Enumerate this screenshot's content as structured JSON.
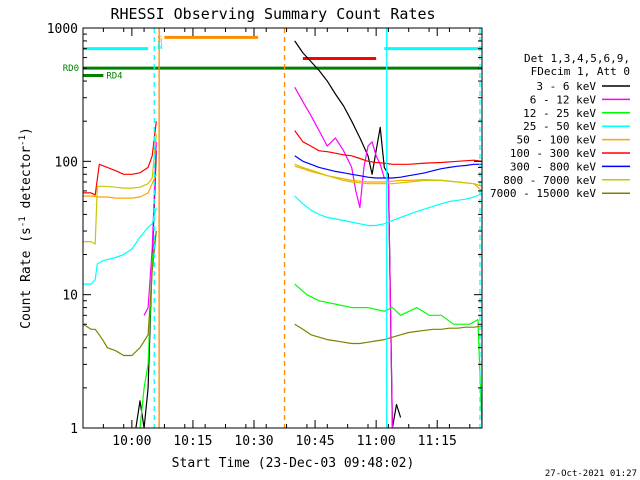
{
  "chart_data": {
    "type": "line",
    "title": "RHESSI Observing Summary Count Rates",
    "xlabel": "Start Time (23-Dec-03 09:48:02)",
    "ylabel_main": "Count Rate (s",
    "ylabel_sup1": "-1",
    "ylabel_mid": " detector",
    "ylabel_sup2": "-1",
    "ylabel_end": ")",
    "yscale": "log",
    "ylim": [
      1,
      1000
    ],
    "xlim_min": [
      0,
      98
    ],
    "xaxis_origin": "09:48:02",
    "xticks": [
      {
        "t": 12,
        "label": "10:00"
      },
      {
        "t": 27,
        "label": "10:15"
      },
      {
        "t": 42,
        "label": "10:30"
      },
      {
        "t": 57,
        "label": "10:45"
      },
      {
        "t": 72,
        "label": "11:00"
      },
      {
        "t": 87,
        "label": "11:15"
      }
    ],
    "yticks": [
      {
        "v": 1,
        "label": "1"
      },
      {
        "v": 10,
        "label": "10"
      },
      {
        "v": 100,
        "label": "100"
      },
      {
        "v": 1000,
        "label": "1000"
      }
    ],
    "legend_header": [
      "Det 1,3,4,5,6,9,",
      "FDecim 1, Att 0"
    ],
    "timestamp": "27-Oct-2021 01:27",
    "series": [
      {
        "name": "3 - 6 keV",
        "color": "#000000",
        "points": [
          [
            0,
            null
          ],
          [
            12,
            null
          ],
          [
            13,
            1
          ],
          [
            14,
            1.6
          ],
          [
            15,
            1
          ],
          [
            16,
            2
          ],
          [
            17,
            18
          ],
          [
            18,
            120
          ],
          [
            18.5,
            null
          ],
          [
            51,
            null
          ],
          [
            52,
            800
          ],
          [
            54,
            650
          ],
          [
            56,
            560
          ],
          [
            58,
            480
          ],
          [
            60,
            400
          ],
          [
            62,
            320
          ],
          [
            64,
            260
          ],
          [
            66,
            200
          ],
          [
            68,
            150
          ],
          [
            70,
            110
          ],
          [
            71,
            80
          ],
          [
            72,
            120
          ],
          [
            73,
            180
          ],
          [
            74,
            90
          ],
          [
            75,
            80
          ],
          [
            76,
            1
          ],
          [
            77,
            1.5
          ],
          [
            78,
            1.2
          ],
          [
            79,
            null
          ]
        ]
      },
      {
        "name": "6 - 12 keV",
        "color": "#ff00ff",
        "points": [
          [
            0,
            null
          ],
          [
            14,
            null
          ],
          [
            15,
            7
          ],
          [
            16,
            8
          ],
          [
            17,
            22
          ],
          [
            18,
            140
          ],
          [
            18.5,
            null
          ],
          [
            51,
            null
          ],
          [
            52,
            360
          ],
          [
            54,
            280
          ],
          [
            56,
            220
          ],
          [
            58,
            170
          ],
          [
            60,
            130
          ],
          [
            62,
            150
          ],
          [
            64,
            120
          ],
          [
            66,
            90
          ],
          [
            67,
            60
          ],
          [
            68,
            45
          ],
          [
            69,
            90
          ],
          [
            70,
            130
          ],
          [
            71,
            140
          ],
          [
            72,
            110
          ],
          [
            73,
            95
          ],
          [
            74,
            75
          ],
          [
            75,
            75
          ],
          [
            76,
            1
          ],
          [
            98,
            1
          ],
          [
            98.5,
            null
          ]
        ]
      },
      {
        "name": "12 - 25 keV",
        "color": "#00ff00",
        "points": [
          [
            0,
            null
          ],
          [
            5,
            null
          ],
          [
            5.2,
            1
          ],
          [
            6,
            1
          ],
          [
            7,
            1
          ],
          [
            8,
            1
          ],
          [
            9,
            1
          ],
          [
            12,
            1
          ],
          [
            14,
            1
          ],
          [
            15,
            2
          ],
          [
            16,
            3
          ],
          [
            17,
            18
          ],
          [
            18,
            30
          ],
          [
            18.5,
            null
          ],
          [
            51,
            null
          ],
          [
            52,
            12
          ],
          [
            55,
            10
          ],
          [
            58,
            9
          ],
          [
            62,
            8.5
          ],
          [
            66,
            8
          ],
          [
            70,
            8
          ],
          [
            74,
            7.5
          ],
          [
            76,
            8
          ],
          [
            78,
            7
          ],
          [
            82,
            8
          ],
          [
            85,
            7
          ],
          [
            88,
            7
          ],
          [
            91,
            6
          ],
          [
            95,
            6
          ],
          [
            97,
            6.5
          ],
          [
            98,
            1
          ]
        ]
      },
      {
        "name": "25 - 50 keV",
        "color": "#00ffff",
        "points": [
          [
            0,
            12
          ],
          [
            2,
            12
          ],
          [
            3,
            13
          ],
          [
            3.5,
            17
          ],
          [
            5,
            18
          ],
          [
            8,
            19
          ],
          [
            10,
            20
          ],
          [
            12,
            22
          ],
          [
            14,
            27
          ],
          [
            16,
            32
          ],
          [
            17,
            34
          ],
          [
            18,
            45
          ],
          [
            18.5,
            null
          ],
          [
            51,
            null
          ],
          [
            52,
            55
          ],
          [
            54,
            48
          ],
          [
            56,
            43
          ],
          [
            58,
            40
          ],
          [
            60,
            38
          ],
          [
            62,
            37
          ],
          [
            64,
            36
          ],
          [
            66,
            35
          ],
          [
            68,
            34
          ],
          [
            70,
            33
          ],
          [
            72,
            33
          ],
          [
            74,
            34
          ],
          [
            76,
            36
          ],
          [
            78,
            38
          ],
          [
            80,
            40
          ],
          [
            82,
            42
          ],
          [
            84,
            44
          ],
          [
            86,
            46
          ],
          [
            88,
            48
          ],
          [
            90,
            50
          ],
          [
            92,
            51
          ],
          [
            94,
            52
          ],
          [
            96,
            54
          ],
          [
            98,
            57
          ]
        ]
      },
      {
        "name": "50 - 100 keV",
        "color": "#ffa500",
        "points": [
          [
            0,
            55
          ],
          [
            2,
            55
          ],
          [
            4,
            54
          ],
          [
            6,
            54
          ],
          [
            8,
            53
          ],
          [
            10,
            53
          ],
          [
            12,
            53
          ],
          [
            14,
            54
          ],
          [
            16,
            58
          ],
          [
            18,
            80
          ],
          [
            18.5,
            null
          ],
          [
            51,
            null
          ],
          [
            52,
            92
          ],
          [
            54,
            88
          ],
          [
            56,
            84
          ],
          [
            58,
            81
          ],
          [
            60,
            78
          ],
          [
            62,
            76
          ],
          [
            64,
            74
          ],
          [
            66,
            72
          ],
          [
            68,
            71
          ],
          [
            70,
            70
          ],
          [
            72,
            70
          ],
          [
            74,
            70
          ],
          [
            76,
            71
          ],
          [
            78,
            72
          ],
          [
            80,
            72
          ],
          [
            84,
            73
          ],
          [
            88,
            72
          ],
          [
            92,
            70
          ],
          [
            96,
            68
          ],
          [
            98,
            60
          ]
        ]
      },
      {
        "name": "100 - 300 keV",
        "color": "#ff0000",
        "points": [
          [
            0,
            58
          ],
          [
            2,
            58
          ],
          [
            3,
            56
          ],
          [
            4,
            95
          ],
          [
            6,
            90
          ],
          [
            8,
            85
          ],
          [
            10,
            80
          ],
          [
            12,
            80
          ],
          [
            14,
            82
          ],
          [
            16,
            90
          ],
          [
            17,
            110
          ],
          [
            18,
            200
          ],
          [
            18.5,
            null
          ],
          [
            51,
            null
          ],
          [
            52,
            170
          ],
          [
            54,
            140
          ],
          [
            56,
            130
          ],
          [
            58,
            120
          ],
          [
            60,
            118
          ],
          [
            62,
            115
          ],
          [
            64,
            112
          ],
          [
            66,
            110
          ],
          [
            68,
            105
          ],
          [
            70,
            100
          ],
          [
            72,
            98
          ],
          [
            74,
            97
          ],
          [
            76,
            95
          ],
          [
            80,
            95
          ],
          [
            84,
            97
          ],
          [
            88,
            98
          ],
          [
            92,
            100
          ],
          [
            96,
            102
          ],
          [
            98,
            100
          ]
        ]
      },
      {
        "name": "300 - 800 keV",
        "color": "#0000ff",
        "points": [
          [
            51,
            null
          ],
          [
            52,
            110
          ],
          [
            54,
            100
          ],
          [
            56,
            95
          ],
          [
            58,
            90
          ],
          [
            60,
            87
          ],
          [
            62,
            84
          ],
          [
            64,
            82
          ],
          [
            66,
            80
          ],
          [
            68,
            78
          ],
          [
            70,
            76
          ],
          [
            72,
            75
          ],
          [
            74,
            75
          ],
          [
            76,
            75
          ],
          [
            78,
            76
          ],
          [
            80,
            78
          ],
          [
            82,
            80
          ],
          [
            84,
            82
          ],
          [
            86,
            85
          ],
          [
            88,
            88
          ],
          [
            90,
            90
          ],
          [
            92,
            92
          ],
          [
            94,
            93
          ],
          [
            96,
            95
          ],
          [
            98,
            95
          ]
        ]
      },
      {
        "name": "800 - 7000 keV",
        "color": "#c8c800",
        "points": [
          [
            0,
            25
          ],
          [
            2,
            25
          ],
          [
            3,
            24
          ],
          [
            3.5,
            65
          ],
          [
            5,
            65
          ],
          [
            8,
            64
          ],
          [
            10,
            63
          ],
          [
            12,
            63
          ],
          [
            14,
            64
          ],
          [
            16,
            68
          ],
          [
            17,
            75
          ],
          [
            18,
            160
          ],
          [
            18.5,
            null
          ],
          [
            51,
            null
          ],
          [
            52,
            95
          ],
          [
            54,
            90
          ],
          [
            56,
            86
          ],
          [
            58,
            82
          ],
          [
            60,
            78
          ],
          [
            62,
            75
          ],
          [
            64,
            72
          ],
          [
            66,
            70
          ],
          [
            68,
            69
          ],
          [
            70,
            68
          ],
          [
            72,
            68
          ],
          [
            74,
            68
          ],
          [
            76,
            68
          ],
          [
            80,
            70
          ],
          [
            84,
            72
          ],
          [
            88,
            72
          ],
          [
            92,
            70
          ],
          [
            96,
            68
          ],
          [
            98,
            65
          ]
        ]
      },
      {
        "name": "7000 - 15000 keV",
        "color": "#808000",
        "points": [
          [
            0,
            6
          ],
          [
            2,
            5.5
          ],
          [
            3,
            5.5
          ],
          [
            4,
            5
          ],
          [
            5,
            4.5
          ],
          [
            6,
            4
          ],
          [
            8,
            3.8
          ],
          [
            10,
            3.5
          ],
          [
            12,
            3.5
          ],
          [
            14,
            4
          ],
          [
            16,
            5
          ],
          [
            17,
            15
          ],
          [
            18,
            30
          ],
          [
            18.5,
            null
          ],
          [
            51,
            null
          ],
          [
            52,
            6
          ],
          [
            54,
            5.5
          ],
          [
            56,
            5
          ],
          [
            58,
            4.8
          ],
          [
            60,
            4.6
          ],
          [
            62,
            4.5
          ],
          [
            64,
            4.4
          ],
          [
            66,
            4.3
          ],
          [
            68,
            4.3
          ],
          [
            70,
            4.4
          ],
          [
            72,
            4.5
          ],
          [
            74,
            4.6
          ],
          [
            76,
            4.8
          ],
          [
            78,
            5
          ],
          [
            80,
            5.2
          ],
          [
            82,
            5.3
          ],
          [
            84,
            5.4
          ],
          [
            86,
            5.5
          ],
          [
            88,
            5.5
          ],
          [
            90,
            5.6
          ],
          [
            92,
            5.6
          ],
          [
            94,
            5.7
          ],
          [
            96,
            5.7
          ],
          [
            98,
            5.8
          ]
        ]
      }
    ],
    "state_bars": [
      {
        "label": "",
        "color": "#00ffff",
        "t0": 0,
        "t1": 16,
        "level": 700
      },
      {
        "label": "",
        "color": "#00ffff",
        "t0": 74,
        "t1": 98,
        "level": 700
      },
      {
        "label": "",
        "color": "#ff8c00",
        "t0": 20,
        "t1": 43,
        "level": 850
      },
      {
        "label": "",
        "color": "#ff0000",
        "t0": 54,
        "t1": 72,
        "level": 590
      },
      {
        "label": "RD0",
        "color": "#008000",
        "t0": 0,
        "t1": 98,
        "level": 500
      },
      {
        "label": "RD4",
        "color": "#008000",
        "t0": 0,
        "t1": 5,
        "level": 440
      }
    ],
    "markers": [
      {
        "label": "S",
        "color": "#ff8c00"
      },
      {
        "label": "N",
        "color": "#00ffff"
      }
    ],
    "vertical_lines": [
      {
        "t": 17.5,
        "color": "#00ffff",
        "style": "dashed"
      },
      {
        "t": 18.7,
        "color": "#ff8c00",
        "style": "solid"
      },
      {
        "t": 49.5,
        "color": "#ff8c00",
        "style": "dashed"
      },
      {
        "t": 74.6,
        "color": "#00ffff",
        "style": "solid"
      },
      {
        "t": 97.5,
        "color": "#00ffff",
        "style": "dashed"
      }
    ]
  }
}
